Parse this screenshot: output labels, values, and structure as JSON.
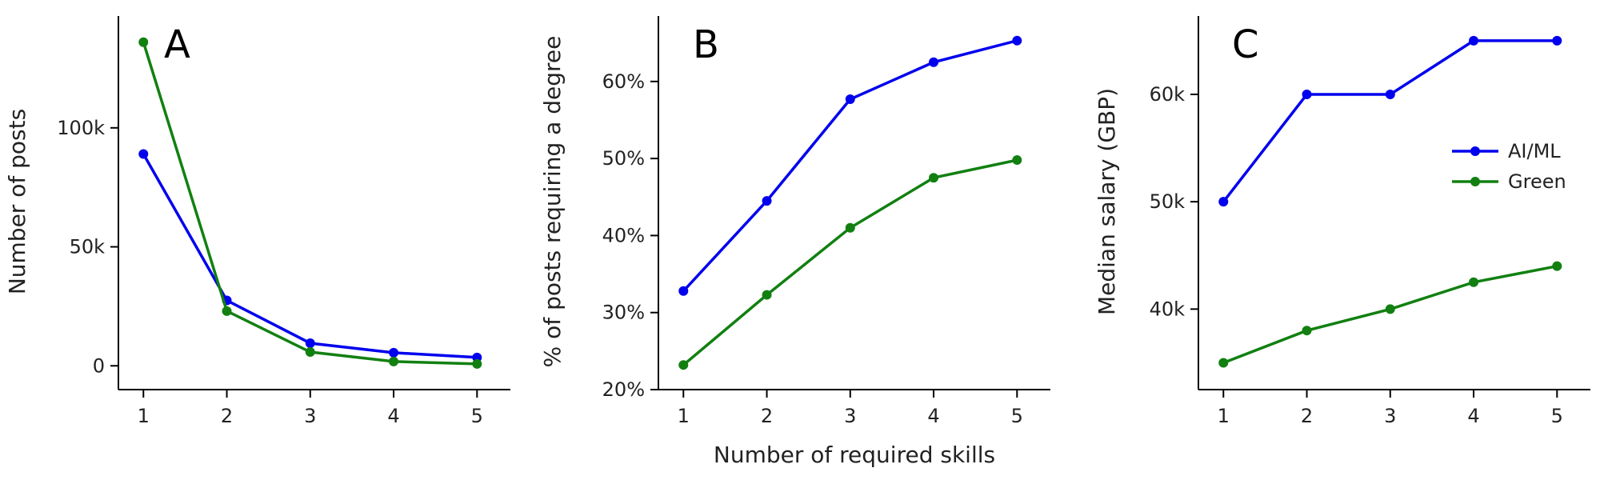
{
  "figure": {
    "shared_xlabel": "Number of required skills",
    "legend": {
      "placement": "right, inside panel C",
      "entries": [
        {
          "name": "AI/ML",
          "color": "#0000ee"
        },
        {
          "name": "Green",
          "color": "#118011"
        }
      ]
    }
  },
  "chart_data": [
    {
      "type": "line",
      "panel": "A",
      "x": [
        1,
        2,
        3,
        4,
        5
      ],
      "xticks": [
        "1",
        "2",
        "3",
        "4",
        "5"
      ],
      "xlim": [
        0.7,
        5.4
      ],
      "ylabel": "Number of posts",
      "ylim": [
        -10000,
        147000
      ],
      "yticks": [
        0,
        50000,
        100000
      ],
      "ytick_labels": [
        "0",
        "50k",
        "100k"
      ],
      "series": [
        {
          "name": "AI/ML",
          "color": "#0000ee",
          "values": [
            89000,
            27500,
            9500,
            5500,
            3500
          ]
        },
        {
          "name": "Green",
          "color": "#118011",
          "values": [
            136000,
            23000,
            5800,
            1800,
            800
          ]
        }
      ]
    },
    {
      "type": "line",
      "panel": "B",
      "x": [
        1,
        2,
        3,
        4,
        5
      ],
      "xticks": [
        "1",
        "2",
        "3",
        "4",
        "5"
      ],
      "xlim": [
        0.7,
        5.4
      ],
      "ylabel": "% of posts requiring a degree",
      "ylim": [
        20,
        68.5
      ],
      "yticks": [
        20,
        30,
        40,
        50,
        60
      ],
      "ytick_labels": [
        "20%",
        "30%",
        "40%",
        "50%",
        "60%"
      ],
      "series": [
        {
          "name": "AI/ML",
          "color": "#0000ee",
          "values": [
            32.8,
            44.5,
            57.7,
            62.5,
            65.3
          ]
        },
        {
          "name": "Green",
          "color": "#118011",
          "values": [
            23.2,
            32.3,
            41.0,
            47.5,
            49.8
          ]
        }
      ]
    },
    {
      "type": "line",
      "panel": "C",
      "x": [
        1,
        2,
        3,
        4,
        5
      ],
      "xticks": [
        "1",
        "2",
        "3",
        "4",
        "5"
      ],
      "xlim": [
        0.7,
        5.4
      ],
      "ylabel": "Median salary (GBP)",
      "ylim": [
        32500,
        67300
      ],
      "yticks": [
        40000,
        50000,
        60000
      ],
      "ytick_labels": [
        "40k",
        "50k",
        "60k"
      ],
      "series": [
        {
          "name": "AI/ML",
          "color": "#0000ee",
          "values": [
            50000,
            60000,
            60000,
            65000,
            65000
          ]
        },
        {
          "name": "Green",
          "color": "#118011",
          "values": [
            35000,
            38000,
            40000,
            42500,
            44000
          ]
        }
      ]
    }
  ]
}
